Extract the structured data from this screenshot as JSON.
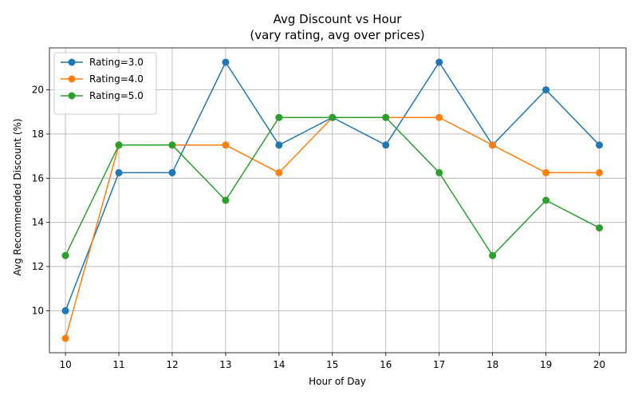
{
  "chart_data": {
    "type": "line",
    "title": "Avg Discount vs Hour",
    "subtitle": "(vary rating, avg over prices)",
    "xlabel": "Hour of Day",
    "ylabel": "Avg Recommended Discount (%)",
    "x": [
      10,
      11,
      12,
      13,
      14,
      15,
      16,
      17,
      18,
      19,
      20
    ],
    "xlim": [
      9.7,
      20.5
    ],
    "ylim": [
      8.1,
      21.9
    ],
    "yticks": [
      10,
      12,
      14,
      16,
      18,
      20
    ],
    "grid": true,
    "legend": "top-left",
    "series": [
      {
        "name": "Rating=3.0",
        "color": "#1f77b4",
        "values": [
          10.0,
          16.25,
          16.25,
          21.25,
          17.5,
          18.75,
          17.5,
          21.25,
          17.5,
          20.0,
          17.5
        ]
      },
      {
        "name": "Rating=4.0",
        "color": "#ff7f0e",
        "values": [
          8.75,
          17.5,
          17.5,
          17.5,
          16.25,
          18.75,
          18.75,
          18.75,
          17.5,
          16.25,
          16.25
        ]
      },
      {
        "name": "Rating=5.0",
        "color": "#2ca02c",
        "values": [
          12.5,
          17.5,
          17.5,
          15.0,
          18.75,
          18.75,
          18.75,
          16.25,
          12.5,
          15.0,
          13.75
        ]
      }
    ]
  }
}
